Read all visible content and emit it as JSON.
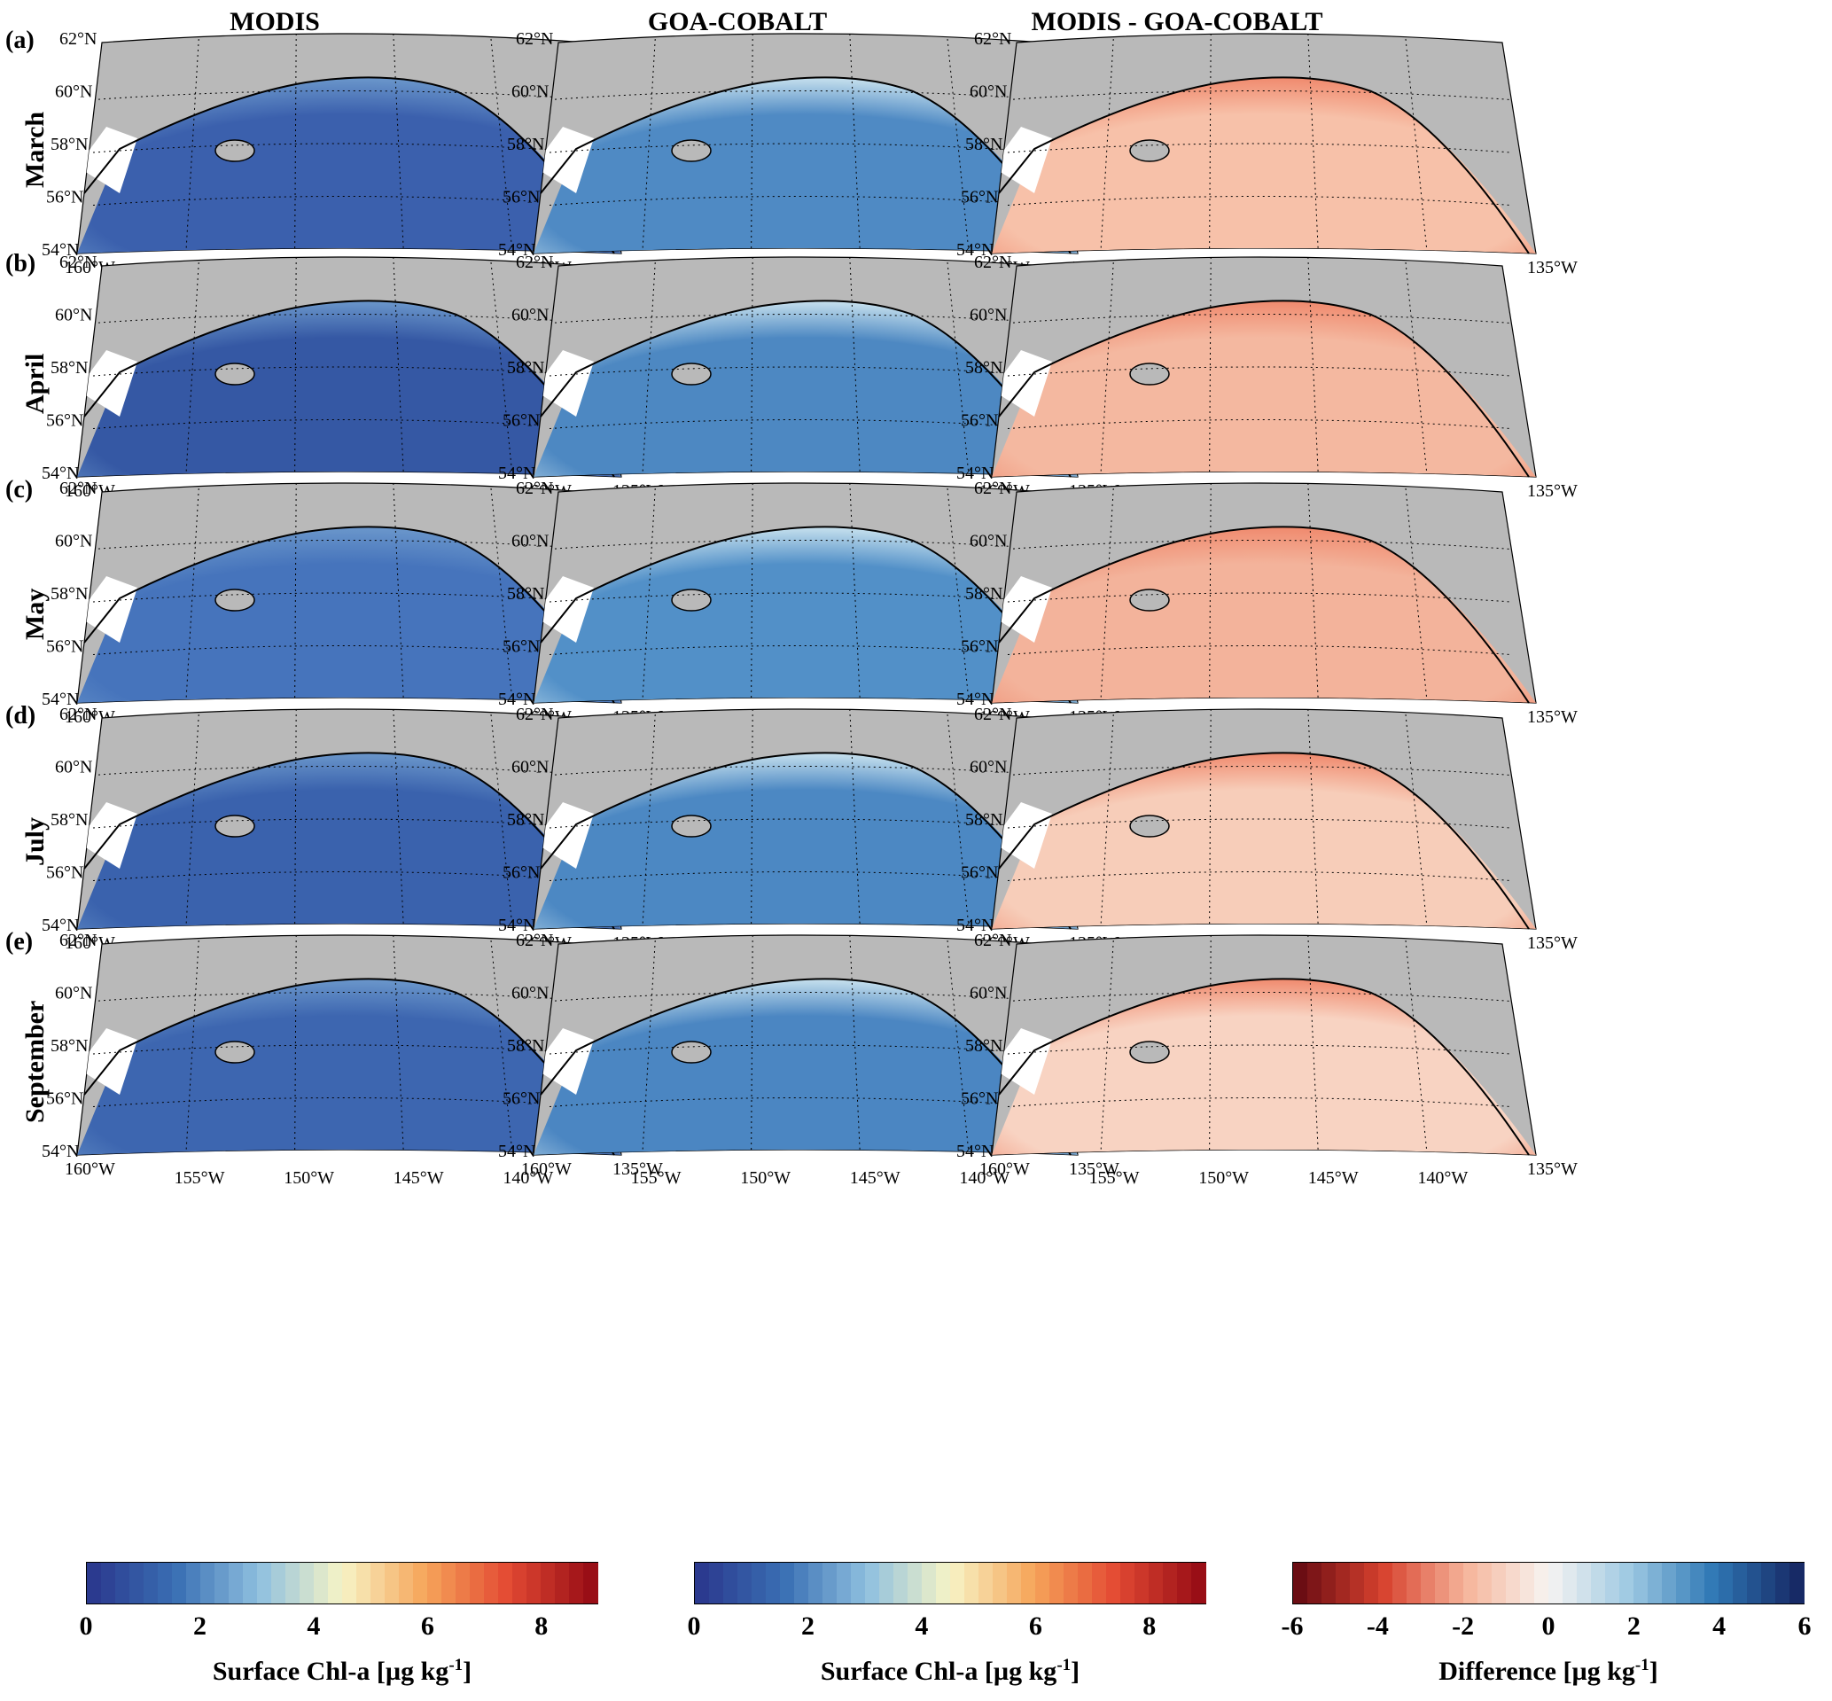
{
  "columns": [
    {
      "title": "MODIS"
    },
    {
      "title": "GOA-COBALT"
    },
    {
      "title": "MODIS - GOA-COBALT"
    }
  ],
  "rows": [
    {
      "letter": "(a)",
      "month": "March"
    },
    {
      "letter": "(b)",
      "month": "April"
    },
    {
      "letter": "(c)",
      "month": "May"
    },
    {
      "letter": "(d)",
      "month": "July"
    },
    {
      "letter": "(e)",
      "month": "September"
    }
  ],
  "lat_labels": [
    "62",
    "60",
    "58",
    "56",
    "54"
  ],
  "lon_labels": [
    "160",
    "155",
    "150",
    "145",
    "140",
    "135"
  ],
  "lat_suffix": "N",
  "lon_suffix": "W",
  "colorbars": [
    {
      "ticks": [
        "0",
        "2",
        "4",
        "6",
        "8"
      ],
      "range": [
        0,
        9
      ],
      "label_main": "Surface Chl-a [µg kg",
      "label_sup": "-1",
      "label_end": "]",
      "cmap": "chl"
    },
    {
      "ticks": [
        "0",
        "2",
        "4",
        "6",
        "8"
      ],
      "range": [
        0,
        9
      ],
      "label_main": "Surface Chl-a [µg kg",
      "label_sup": "-1",
      "label_end": "]",
      "cmap": "chl"
    },
    {
      "ticks": [
        "-6",
        "-4",
        "-2",
        "0",
        "2",
        "4",
        "6"
      ],
      "range": [
        -6,
        6
      ],
      "label_main": "Difference [µg kg",
      "label_sup": "-1",
      "label_end": "]",
      "cmap": "diff"
    }
  ],
  "colors": {
    "land": "#b9b9b9",
    "chl_scale": [
      "#2b3a8f",
      "#3a70b4",
      "#8fc0df",
      "#f7f4c6",
      "#f6a55a",
      "#e34a33",
      "#990e16"
    ],
    "diff_scale": [
      "#6b0d13",
      "#d7422e",
      "#f6b49a",
      "#f7f4f2",
      "#9cc8e2",
      "#2f78b5",
      "#172a66"
    ],
    "modis_fill": [
      "#3b60ad",
      "#3558a4",
      "#4674bc",
      "#3a62ad",
      "#3d66b0"
    ],
    "cobalt_fill": [
      "#4f8ac4",
      "#4d88c2",
      "#5290c8",
      "#4c88c3",
      "#4b86c2"
    ],
    "diff_fill": [
      "#f7c1a9",
      "#f4b8a0",
      "#f3b39b",
      "#f7cdb9",
      "#f8d3c2"
    ]
  }
}
